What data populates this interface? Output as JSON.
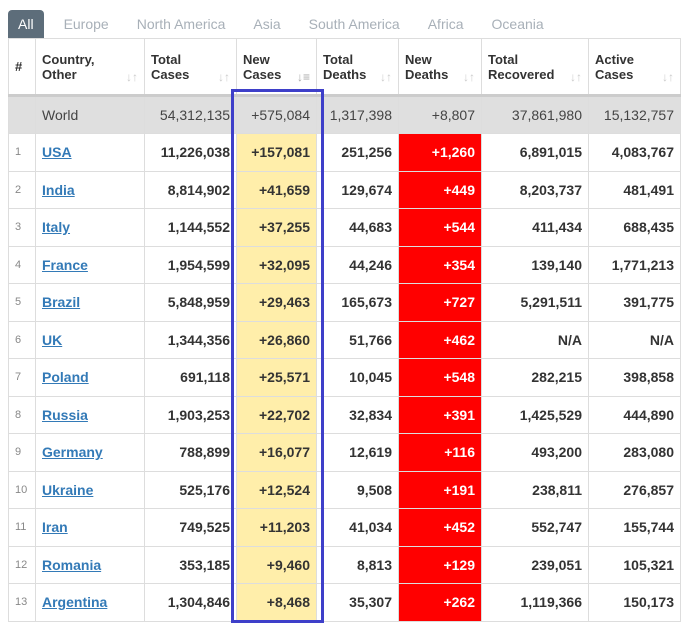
{
  "tabs": [
    "All",
    "Europe",
    "North America",
    "Asia",
    "South America",
    "Africa",
    "Oceania"
  ],
  "headers": [
    {
      "l1": "#",
      "l2": ""
    },
    {
      "l1": "Country,",
      "l2": "Other"
    },
    {
      "l1": "Total",
      "l2": "Cases"
    },
    {
      "l1": "New",
      "l2": "Cases"
    },
    {
      "l1": "Total",
      "l2": "Deaths"
    },
    {
      "l1": "New",
      "l2": "Deaths"
    },
    {
      "l1": "Total",
      "l2": "Recovered"
    },
    {
      "l1": "Active",
      "l2": "Cases"
    }
  ],
  "world": {
    "country": "World",
    "total_cases": "54,312,135",
    "new_cases": "+575,084",
    "total_deaths": "1,317,398",
    "new_deaths": "+8,807",
    "total_recovered": "37,861,980",
    "active_cases": "15,132,757"
  },
  "rows": [
    [
      "1",
      "USA",
      "11,226,038",
      "+157,081",
      "251,256",
      "+1,260",
      "6,891,015",
      "4,083,767"
    ],
    [
      "2",
      "India",
      "8,814,902",
      "+41,659",
      "129,674",
      "+449",
      "8,203,737",
      "481,491"
    ],
    [
      "3",
      "Italy",
      "1,144,552",
      "+37,255",
      "44,683",
      "+544",
      "411,434",
      "688,435"
    ],
    [
      "4",
      "France",
      "1,954,599",
      "+32,095",
      "44,246",
      "+354",
      "139,140",
      "1,771,213"
    ],
    [
      "5",
      "Brazil",
      "5,848,959",
      "+29,463",
      "165,673",
      "+727",
      "5,291,511",
      "391,775"
    ],
    [
      "6",
      "UK",
      "1,344,356",
      "+26,860",
      "51,766",
      "+462",
      "N/A",
      "N/A"
    ],
    [
      "7",
      "Poland",
      "691,118",
      "+25,571",
      "10,045",
      "+548",
      "282,215",
      "398,858"
    ],
    [
      "8",
      "Russia",
      "1,903,253",
      "+22,702",
      "32,834",
      "+391",
      "1,425,529",
      "444,890"
    ],
    [
      "9",
      "Germany",
      "788,899",
      "+16,077",
      "12,619",
      "+116",
      "493,200",
      "283,080"
    ],
    [
      "10",
      "Ukraine",
      "525,176",
      "+12,524",
      "9,508",
      "+191",
      "238,811",
      "276,857"
    ],
    [
      "11",
      "Iran",
      "749,525",
      "+11,203",
      "41,034",
      "+452",
      "552,747",
      "155,744"
    ],
    [
      "12",
      "Romania",
      "353,185",
      "+9,460",
      "8,813",
      "+129",
      "239,051",
      "105,321"
    ],
    [
      "13",
      "Argentina",
      "1,304,846",
      "+8,468",
      "35,307",
      "+262",
      "1,119,366",
      "150,173"
    ]
  ],
  "colors": {
    "highlight_box": "#3e3fc9",
    "new_cases_bg": "#ffeeaa",
    "new_deaths_bg": "#ff0000"
  }
}
